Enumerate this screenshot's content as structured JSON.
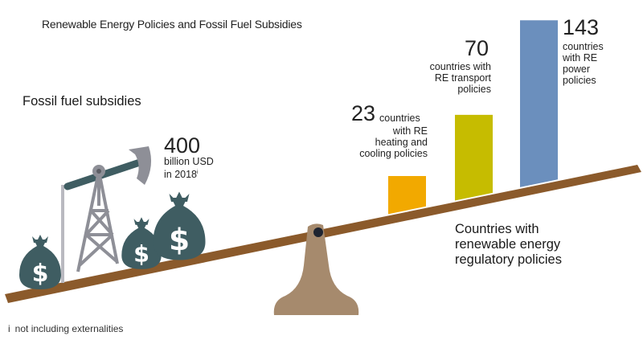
{
  "title": "Renewable Energy Policies and Fossil Fuel Subsidies",
  "fossil": {
    "label": "Fossil fuel subsidies",
    "value": "400",
    "unit_line1": "billion USD",
    "unit_line2": "in 2018",
    "unit_note": "i"
  },
  "renewables_label": "Countries with renewable energy regulatory policies",
  "renewables_label_lines": [
    "Countries with",
    "renewable energy",
    "regulatory policies"
  ],
  "bars": {
    "heating": {
      "value": "23",
      "line1": "countries",
      "line2": "with RE",
      "line3": "heating and",
      "line4": "cooling policies"
    },
    "transport": {
      "value": "70",
      "line1": "countries with",
      "line2": "RE transport",
      "line3": "policies"
    },
    "power": {
      "value": "143",
      "line1": "countries",
      "line2": "with RE",
      "line3": "power",
      "line4": "policies"
    }
  },
  "footnote": {
    "marker": "i",
    "text": "not including externalities"
  },
  "colors": {
    "beam": "#8b5a2b",
    "fulcrum": "#a68a6d",
    "moneybag": "#3f5d62",
    "pump": "#8e8f97",
    "pump_arm": "#3f5d62",
    "heating_bar": "#f2a900",
    "transport_bar": "#c6bc00",
    "power_bar": "#6b8fbd"
  },
  "chart_data": {
    "type": "bar",
    "title": "Renewable Energy Policies and Fossil Fuel Subsidies",
    "categories": [
      "RE heating and cooling policies",
      "RE transport policies",
      "RE power policies"
    ],
    "series": [
      {
        "name": "Countries with renewable energy regulatory policies",
        "values": [
          23,
          70,
          143
        ]
      }
    ],
    "annotations": [
      {
        "label": "Fossil fuel subsidies",
        "value": 400,
        "unit": "billion USD in 2018",
        "note": "not including externalities"
      }
    ]
  }
}
